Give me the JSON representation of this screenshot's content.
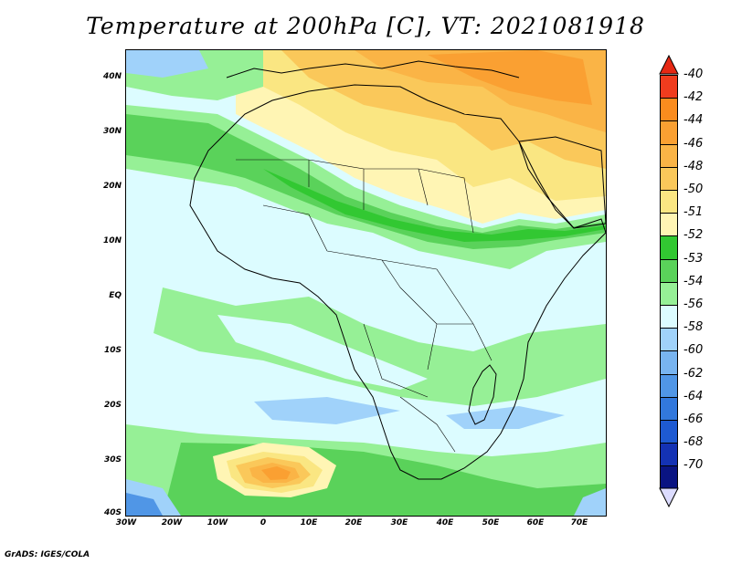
{
  "title": "Temperature at 200hPa [C], VT: 2021081918",
  "footer": "GrADS: IGES/COLA",
  "axes": {
    "lat_labels": [
      "40N",
      "30N",
      "20N",
      "10N",
      "EQ",
      "10S",
      "20S",
      "30S",
      "40S"
    ],
    "lon_labels": [
      "30W",
      "20W",
      "10W",
      "0",
      "10E",
      "20E",
      "30E",
      "40E",
      "50E",
      "60E",
      "70E"
    ]
  },
  "colorbar": {
    "levels": [
      {
        "label": "-40",
        "color": "#f03c1e"
      },
      {
        "label": "-42",
        "color": "#fa8c1e"
      },
      {
        "label": "-44",
        "color": "#faa032"
      },
      {
        "label": "-46",
        "color": "#fab446"
      },
      {
        "label": "-48",
        "color": "#fac85a"
      },
      {
        "label": "-50",
        "color": "#fae682"
      },
      {
        "label": "-51",
        "color": "#fff5b4"
      },
      {
        "label": "-52",
        "color": "#32c832"
      },
      {
        "label": "-53",
        "color": "#5ad25a"
      },
      {
        "label": "-54",
        "color": "#96f096"
      },
      {
        "label": "-56",
        "color": "#dcfcff"
      },
      {
        "label": "-58",
        "color": "#a0d2fa"
      },
      {
        "label": "-60",
        "color": "#78b4f0"
      },
      {
        "label": "-62",
        "color": "#5096e6"
      },
      {
        "label": "-64",
        "color": "#3278dc"
      },
      {
        "label": "-66",
        "color": "#1e5ad2"
      },
      {
        "label": "-68",
        "color": "#1432b4"
      },
      {
        "label": "-70",
        "color": "#0a1482"
      }
    ],
    "top_arrow_color": "#e62814",
    "bottom_arrow_color": "#dcdcff"
  }
}
